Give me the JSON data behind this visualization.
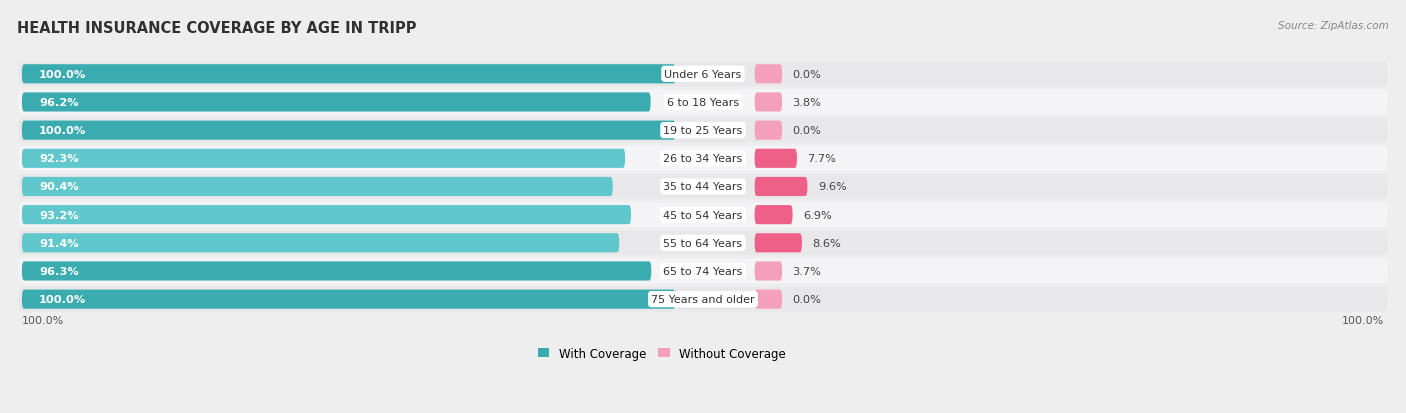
{
  "title": "HEALTH INSURANCE COVERAGE BY AGE IN TRIPP",
  "source": "Source: ZipAtlas.com",
  "categories": [
    "Under 6 Years",
    "6 to 18 Years",
    "19 to 25 Years",
    "26 to 34 Years",
    "35 to 44 Years",
    "45 to 54 Years",
    "55 to 64 Years",
    "65 to 74 Years",
    "75 Years and older"
  ],
  "with_coverage": [
    100.0,
    96.2,
    100.0,
    92.3,
    90.4,
    93.2,
    91.4,
    96.3,
    100.0
  ],
  "without_coverage": [
    0.0,
    3.8,
    0.0,
    7.7,
    9.6,
    6.9,
    8.6,
    3.7,
    0.0
  ],
  "color_with_dark": "#3AACB0",
  "color_with_light": "#60C8CC",
  "color_without_dark": "#EE6088",
  "color_without_light": "#F4A0BC",
  "bg_color": "#EEEEEE",
  "row_bg_even": "#E8E8EA",
  "row_bg_odd": "#F4F4F6",
  "title_fontsize": 10.5,
  "label_fontsize": 8.5,
  "legend_fontsize": 8.5,
  "source_fontsize": 7.5
}
